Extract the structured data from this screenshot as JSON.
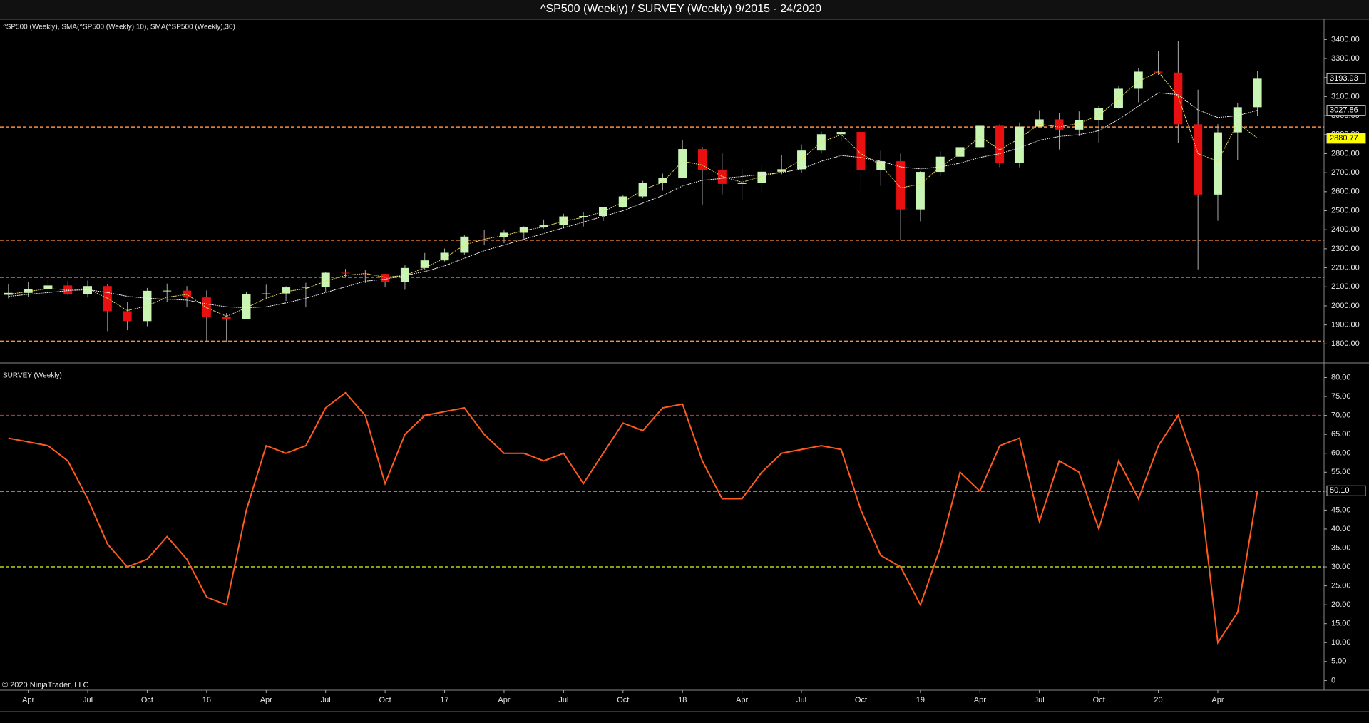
{
  "title": "^SP500 (Weekly) / SURVEY (Weekly)  9/2015 - 24/2020",
  "copyright": "© 2020 NinjaTrader, LLC",
  "chart_data": [
    {
      "type": "candlestick",
      "label": "^SP500 (Weekly), SMA(^SP500 (Weekly),10), SMA(^SP500 (Weekly),30)",
      "x": [
        "2015-03",
        "2015-04",
        "2015-05",
        "2015-06",
        "2015-07",
        "2015-08",
        "2015-09",
        "2015-10",
        "2015-11",
        "2015-12",
        "2016-01",
        "2016-02",
        "2016-03",
        "2016-04",
        "2016-05",
        "2016-06",
        "2016-07",
        "2016-08",
        "2016-09",
        "2016-10",
        "2016-11",
        "2016-12",
        "2017-01",
        "2017-02",
        "2017-03",
        "2017-04",
        "2017-05",
        "2017-06",
        "2017-07",
        "2017-08",
        "2017-09",
        "2017-10",
        "2017-11",
        "2017-12",
        "2018-01",
        "2018-02",
        "2018-03",
        "2018-04",
        "2018-05",
        "2018-06",
        "2018-07",
        "2018-08",
        "2018-09",
        "2018-10",
        "2018-11",
        "2018-12",
        "2019-01",
        "2019-02",
        "2019-03",
        "2019-04",
        "2019-05",
        "2019-06",
        "2019-07",
        "2019-08",
        "2019-09",
        "2019-10",
        "2019-11",
        "2019-12",
        "2020-01",
        "2020-02",
        "2020-03",
        "2020-04",
        "2020-05",
        "2020-06"
      ],
      "open": [
        2058,
        2068,
        2086,
        2107,
        2063,
        2104,
        1972,
        1920,
        2079,
        2080,
        2044,
        1940,
        1932,
        2060,
        2065,
        2097,
        2099,
        2174,
        2171,
        2168,
        2126,
        2199,
        2239,
        2279,
        2364,
        2363,
        2384,
        2412,
        2423,
        2470,
        2472,
        2519,
        2575,
        2648,
        2674,
        2824,
        2714,
        2641,
        2648,
        2705,
        2718,
        2816,
        2902,
        2914,
        2712,
        2760,
        2507,
        2704,
        2784,
        2834,
        2946,
        2752,
        2942,
        2980,
        2926,
        2977,
        3038,
        3141,
        3231,
        3226,
        2954,
        2585,
        2912,
        3044
      ],
      "high": [
        2114,
        2126,
        2135,
        2130,
        2133,
        2113,
        2021,
        2094,
        2117,
        2104,
        2081,
        1962,
        2073,
        2111,
        2103,
        2121,
        2178,
        2194,
        2188,
        2169,
        2214,
        2278,
        2301,
        2371,
        2401,
        2398,
        2418,
        2454,
        2484,
        2491,
        2520,
        2582,
        2657,
        2695,
        2873,
        2835,
        2801,
        2718,
        2742,
        2791,
        2848,
        2916,
        2941,
        2940,
        2815,
        2800,
        2708,
        2813,
        2860,
        2949,
        2954,
        2964,
        3028,
        3014,
        3022,
        3050,
        3154,
        3248,
        3338,
        3393,
        3136,
        2955,
        3068,
        3233
      ],
      "low": [
        2040,
        2048,
        2067,
        2056,
        2044,
        1867,
        1872,
        1893,
        2019,
        1993,
        1812,
        1810,
        1931,
        2034,
        2026,
        1992,
        2074,
        2148,
        2120,
        2097,
        2084,
        2187,
        2234,
        2267,
        2322,
        2329,
        2353,
        2406,
        2407,
        2417,
        2446,
        2515,
        2566,
        2605,
        2672,
        2533,
        2585,
        2553,
        2594,
        2691,
        2698,
        2802,
        2864,
        2603,
        2631,
        2347,
        2444,
        2681,
        2722,
        2831,
        2729,
        2728,
        2940,
        2822,
        2892,
        2856,
        3036,
        3070,
        3214,
        2855,
        2192,
        2447,
        2767,
        2999
      ],
      "close": [
        2068,
        2086,
        2107,
        2063,
        2104,
        1972,
        1920,
        2079,
        2080,
        2044,
        1940,
        1932,
        2060,
        2065,
        2097,
        2099,
        2174,
        2171,
        2168,
        2126,
        2199,
        2239,
        2279,
        2364,
        2363,
        2384,
        2412,
        2423,
        2470,
        2472,
        2519,
        2575,
        2648,
        2674,
        2824,
        2714,
        2641,
        2648,
        2705,
        2718,
        2816,
        2902,
        2914,
        2712,
        2760,
        2507,
        2704,
        2784,
        2834,
        2946,
        2752,
        2942,
        2980,
        2926,
        2977,
        3038,
        3141,
        3231,
        3226,
        2954,
        2585,
        2912,
        3044,
        3193.93
      ],
      "up_color": "#c8f5b4",
      "down_color": "#e81010",
      "overlays": [
        {
          "color": "#e8e060",
          "values": [
            2060,
            2075,
            2090,
            2085,
            2090,
            2040,
            1975,
            2000,
            2045,
            2060,
            1990,
            1945,
            1990,
            2040,
            2075,
            2090,
            2130,
            2160,
            2170,
            2150,
            2160,
            2200,
            2250,
            2320,
            2350,
            2370,
            2395,
            2415,
            2445,
            2465,
            2495,
            2545,
            2610,
            2650,
            2760,
            2740,
            2680,
            2650,
            2680,
            2705,
            2770,
            2860,
            2900,
            2800,
            2740,
            2620,
            2640,
            2730,
            2800,
            2890,
            2820,
            2880,
            2955,
            2940,
            2960,
            3000,
            3090,
            3180,
            3230,
            3100,
            2800,
            2760,
            2960,
            2880.77
          ]
        },
        {
          "color": "#f0f0f0",
          "values": [
            2050,
            2060,
            2070,
            2080,
            2085,
            2070,
            2050,
            2040,
            2035,
            2030,
            2010,
            1995,
            1990,
            1995,
            2015,
            2040,
            2070,
            2100,
            2130,
            2140,
            2160,
            2180,
            2210,
            2250,
            2290,
            2320,
            2350,
            2380,
            2410,
            2440,
            2470,
            2500,
            2540,
            2580,
            2630,
            2660,
            2670,
            2680,
            2690,
            2700,
            2720,
            2760,
            2790,
            2780,
            2760,
            2730,
            2720,
            2730,
            2750,
            2780,
            2800,
            2830,
            2870,
            2890,
            2900,
            2920,
            2980,
            3050,
            3120,
            3110,
            3030,
            2990,
            3000,
            3027.86
          ]
        }
      ],
      "hlines": [
        {
          "value": 2940,
          "color": "#ff8c3a"
        },
        {
          "value": 2345,
          "color": "#ff8c3a"
        },
        {
          "value": 2150,
          "color": "#ff8c3a"
        },
        {
          "value": 1815,
          "color": "#ff8c3a"
        }
      ],
      "markers": [
        {
          "value": 3193.93,
          "color": "#000000",
          "text_color": "#ffffff"
        },
        {
          "value": 3027.86,
          "color": "#000000",
          "text_color": "#ffffff"
        },
        {
          "value": 2880.77,
          "color": "#ffff00",
          "text_color": "#000000"
        }
      ],
      "xlim": [
        "2015-02",
        "2020-09"
      ],
      "ylim": [
        1715,
        3465
      ],
      "yticks": [
        {
          "value": 1800,
          "label": "1800.00"
        },
        {
          "value": 1900,
          "label": "1900.00"
        },
        {
          "value": 2000,
          "label": "2000.00"
        },
        {
          "value": 2100,
          "label": "2100.00"
        },
        {
          "value": 2200,
          "label": "2200.00"
        },
        {
          "value": 2300,
          "label": "2300.00"
        },
        {
          "value": 2400,
          "label": "2400.00"
        },
        {
          "value": 2500,
          "label": "2500.00"
        },
        {
          "value": 2600,
          "label": "2600.00"
        },
        {
          "value": 2700,
          "label": "2700.00"
        },
        {
          "value": 2800,
          "label": "2800.00"
        },
        {
          "value": 2900,
          "label": "2900.00"
        },
        {
          "value": 3000,
          "label": "3000.00"
        },
        {
          "value": 3100,
          "label": "3100.00"
        },
        {
          "value": 3200,
          "label": "3200.00"
        },
        {
          "value": 3300,
          "label": "3300.00"
        },
        {
          "value": 3400,
          "label": "3400.00"
        }
      ]
    },
    {
      "type": "line",
      "label": "SURVEY (Weekly)",
      "x": [
        "2015-03",
        "2015-04",
        "2015-05",
        "2015-06",
        "2015-07",
        "2015-08",
        "2015-09",
        "2015-10",
        "2015-11",
        "2015-12",
        "2016-01",
        "2016-02",
        "2016-03",
        "2016-04",
        "2016-05",
        "2016-06",
        "2016-07",
        "2016-08",
        "2016-09",
        "2016-10",
        "2016-11",
        "2016-12",
        "2017-01",
        "2017-02",
        "2017-03",
        "2017-04",
        "2017-05",
        "2017-06",
        "2017-07",
        "2017-08",
        "2017-09",
        "2017-10",
        "2017-11",
        "2017-12",
        "2018-01",
        "2018-02",
        "2018-03",
        "2018-04",
        "2018-05",
        "2018-06",
        "2018-07",
        "2018-08",
        "2018-09",
        "2018-10",
        "2018-11",
        "2018-12",
        "2019-01",
        "2019-02",
        "2019-03",
        "2019-04",
        "2019-05",
        "2019-06",
        "2019-07",
        "2019-08",
        "2019-09",
        "2019-10",
        "2019-11",
        "2019-12",
        "2020-01",
        "2020-02",
        "2020-03",
        "2020-04",
        "2020-05",
        "2020-06"
      ],
      "values": [
        64,
        63,
        62,
        58,
        48,
        36,
        30,
        32,
        38,
        32,
        22,
        20,
        45,
        62,
        60,
        62,
        72,
        76,
        70,
        52,
        65,
        70,
        71,
        72,
        65,
        60,
        60,
        58,
        60,
        52,
        60,
        68,
        66,
        72,
        73,
        58,
        48,
        48,
        55,
        60,
        61,
        62,
        61,
        45,
        33,
        30,
        20,
        35,
        55,
        50,
        62,
        64,
        42,
        58,
        55,
        40,
        58,
        48,
        62,
        70,
        55,
        10,
        18,
        50.1
      ],
      "color": "#ff5a1f",
      "hlines": [
        {
          "value": 70,
          "color": "#e02020"
        },
        {
          "value": 50,
          "color": "#e8e830"
        },
        {
          "value": 30,
          "color": "#b8d020"
        }
      ],
      "markers": [
        {
          "value": 50.1,
          "label": "50.10",
          "color": "#000000",
          "text_color": "#ffffff"
        }
      ],
      "xlim": [
        "2015-02",
        "2020-09"
      ],
      "ylim": [
        -2,
        83.3
      ],
      "yticks": [
        0,
        {
          "value": 5,
          "label": "5.00"
        },
        {
          "value": 10,
          "label": "10.00"
        },
        {
          "value": 15,
          "label": "15.00"
        },
        {
          "value": 20,
          "label": "20.00"
        },
        {
          "value": 25,
          "label": "25.00"
        },
        {
          "value": 30,
          "label": "30.00"
        },
        {
          "value": 35,
          "label": "35.00"
        },
        {
          "value": 40,
          "label": "40.00"
        },
        {
          "value": 45,
          "label": "45.00"
        },
        {
          "value": 50,
          "label": "50.00"
        },
        {
          "value": 55,
          "label": "55.00"
        },
        {
          "value": 60,
          "label": "60.00"
        },
        {
          "value": 65,
          "label": "65.00"
        },
        {
          "value": 70,
          "label": "70.00"
        },
        {
          "value": 75,
          "label": "75.00"
        },
        {
          "value": 80,
          "label": "80.00"
        }
      ],
      "xticks": [
        {
          "value": "2015-04",
          "label": "Apr"
        },
        {
          "value": "2015-07",
          "label": "Jul"
        },
        {
          "value": "2015-10",
          "label": "Oct"
        },
        {
          "value": "2016-01",
          "label": "16"
        },
        {
          "value": "2016-04",
          "label": "Apr"
        },
        {
          "value": "2016-07",
          "label": "Jul"
        },
        {
          "value": "2016-10",
          "label": "Oct"
        },
        {
          "value": "2017-01",
          "label": "17"
        },
        {
          "value": "2017-04",
          "label": "Apr"
        },
        {
          "value": "2017-07",
          "label": "Jul"
        },
        {
          "value": "2017-10",
          "label": "Oct"
        },
        {
          "value": "2018-01",
          "label": "18"
        },
        {
          "value": "2018-04",
          "label": "Apr"
        },
        {
          "value": "2018-07",
          "label": "Jul"
        },
        {
          "value": "2018-10",
          "label": "Oct"
        },
        {
          "value": "2019-01",
          "label": "19"
        },
        {
          "value": "2019-04",
          "label": "Apr"
        },
        {
          "value": "2019-07",
          "label": "Jul"
        },
        {
          "value": "2019-10",
          "label": "Oct"
        },
        {
          "value": "2020-01",
          "label": "20"
        },
        {
          "value": "2020-04",
          "label": "Apr"
        }
      ]
    }
  ]
}
